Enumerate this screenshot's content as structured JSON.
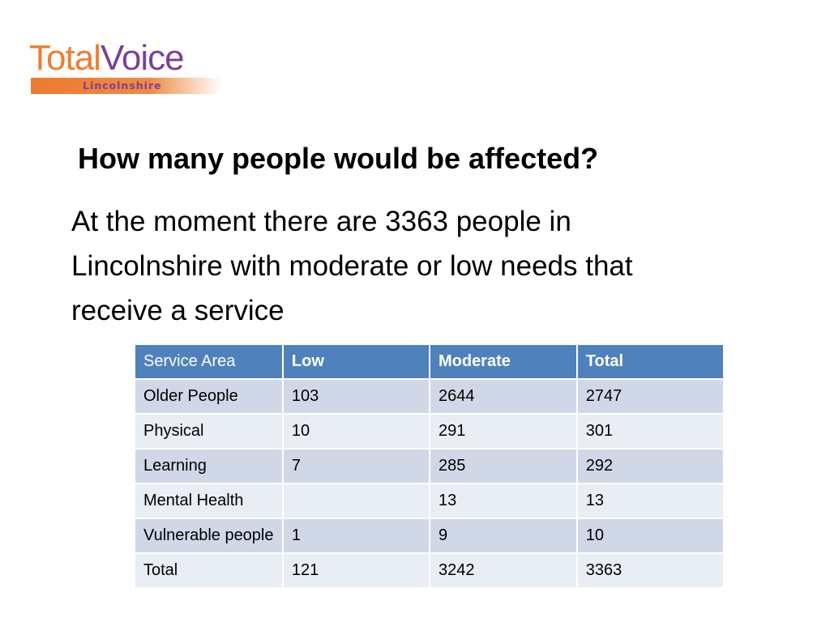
{
  "logo": {
    "word_part1": "Total",
    "word_part2": "Voice",
    "subtitle": "Lincolnshire",
    "colors": {
      "orange": "#ef7d2f",
      "purple": "#7e3f98"
    }
  },
  "title": "How many people would be affected?",
  "body": "At the moment there are 3363 people in Lincolnshire with moderate or low needs that receive a service",
  "table": {
    "headers": [
      "Service Area",
      "Low",
      "Moderate",
      "Total"
    ],
    "rows": [
      [
        "Older People",
        "103",
        "2644",
        "2747"
      ],
      [
        "Physical",
        "10",
        "291",
        "301"
      ],
      [
        "Learning",
        "7",
        "285",
        "292"
      ],
      [
        "Mental Health",
        "",
        "13",
        "13"
      ],
      [
        "Vulnerable people",
        "1",
        "9",
        "10"
      ],
      [
        "Total",
        "121",
        "3242",
        "3363"
      ]
    ],
    "colors": {
      "header": "#4f81bd",
      "row_dark": "#d0d8e8",
      "row_light": "#e9edf4"
    }
  }
}
